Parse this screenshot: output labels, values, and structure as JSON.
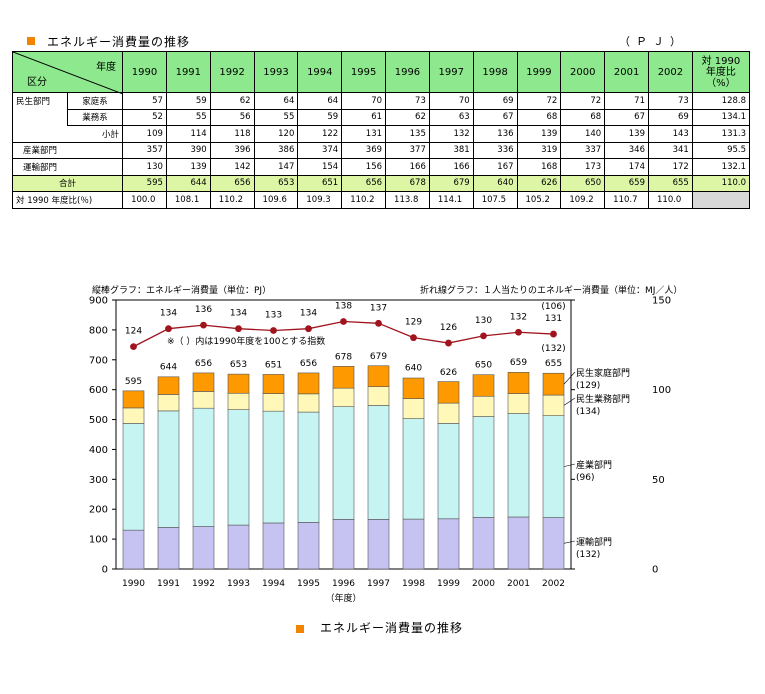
{
  "title": "エネルギー消費量の推移",
  "unit": "（ＰＪ）",
  "table": {
    "header_year": "年度",
    "header_category": "区分",
    "years": [
      "1990",
      "1991",
      "1992",
      "1993",
      "1994",
      "1995",
      "1996",
      "1997",
      "1998",
      "1999",
      "2000",
      "2001",
      "2002"
    ],
    "ratio_header": [
      "対 1990",
      "年度比",
      "（%）"
    ],
    "rows": [
      {
        "group": "民生部門",
        "sub": "家庭系",
        "values": [
          "57",
          "59",
          "62",
          "64",
          "64",
          "70",
          "73",
          "70",
          "69",
          "72",
          "72",
          "71",
          "73"
        ],
        "ratio": "128.8"
      },
      {
        "group": "",
        "sub": "業務系",
        "values": [
          "52",
          "55",
          "56",
          "55",
          "59",
          "61",
          "62",
          "63",
          "67",
          "68",
          "68",
          "67",
          "69"
        ],
        "ratio": "134.1"
      },
      {
        "group": "",
        "sub": "小計",
        "values": [
          "109",
          "114",
          "118",
          "120",
          "122",
          "131",
          "135",
          "132",
          "136",
          "139",
          "140",
          "139",
          "143"
        ],
        "ratio": "131.3"
      },
      {
        "group": "産業部門",
        "sub": "",
        "values": [
          "357",
          "390",
          "396",
          "386",
          "374",
          "369",
          "377",
          "381",
          "336",
          "319",
          "337",
          "346",
          "341"
        ],
        "ratio": "95.5"
      },
      {
        "group": "運輸部門",
        "sub": "",
        "values": [
          "130",
          "139",
          "142",
          "147",
          "154",
          "156",
          "166",
          "166",
          "167",
          "168",
          "173",
          "174",
          "172"
        ],
        "ratio": "132.1"
      }
    ],
    "total": {
      "label": "合計",
      "values": [
        "595",
        "644",
        "656",
        "653",
        "651",
        "656",
        "678",
        "679",
        "640",
        "626",
        "650",
        "659",
        "655"
      ],
      "ratio": "110.0"
    },
    "ratio_row": {
      "label": "対 1990 年度比(％)",
      "values": [
        "100.0",
        "108.1",
        "110.2",
        "109.6",
        "109.3",
        "110.2",
        "113.8",
        "114.1",
        "107.5",
        "105.2",
        "109.2",
        "110.7",
        "110.0"
      ],
      "ratio": ""
    }
  },
  "chart_data": {
    "type": "bar",
    "left_axis_title": "縦棒グラフ：エネルギー消費量（単位：PJ）",
    "right_axis_title": "折れ線グラフ：１人当たりのエネルギー消費量（単位：MJ／人）",
    "note": "※（ ）内は1990年度を100とする指数",
    "xlabel": "（年度）",
    "categories": [
      "1990",
      "1991",
      "1992",
      "1993",
      "1994",
      "1995",
      "1996",
      "1997",
      "1998",
      "1999",
      "2000",
      "2001",
      "2002"
    ],
    "ylim": [
      0,
      900
    ],
    "yticks": [
      0,
      100,
      200,
      300,
      400,
      500,
      600,
      700,
      800,
      900
    ],
    "y2lim": [
      0,
      150
    ],
    "y2ticks": [
      0,
      50,
      100,
      150
    ],
    "series": [
      {
        "name": "運輸部門",
        "index": "(132)",
        "color": "#c6c3f2",
        "values": [
          130,
          139,
          142,
          147,
          154,
          156,
          166,
          166,
          167,
          168,
          173,
          174,
          172
        ]
      },
      {
        "name": "産業部門",
        "index": "(96)",
        "color": "#c6f4f2",
        "values": [
          357,
          390,
          396,
          386,
          374,
          369,
          377,
          381,
          336,
          319,
          337,
          346,
          341
        ]
      },
      {
        "name": "民生業務部門",
        "index": "(134)",
        "color": "#fff8b8",
        "values": [
          52,
          55,
          56,
          55,
          59,
          61,
          62,
          63,
          67,
          68,
          68,
          67,
          69
        ]
      },
      {
        "name": "民生家庭部門",
        "index": "(129)",
        "color": "#ff9900",
        "values": [
          57,
          59,
          62,
          64,
          64,
          70,
          73,
          70,
          69,
          72,
          72,
          71,
          73
        ]
      }
    ],
    "totals": [
      595,
      644,
      656,
      653,
      651,
      656,
      678,
      679,
      640,
      626,
      650,
      659,
      655
    ],
    "line": {
      "axis": "right",
      "color": "#a0141e",
      "values": [
        124,
        134,
        136,
        134,
        133,
        134,
        138,
        137,
        129,
        126,
        130,
        132,
        131
      ],
      "end_index_top": "(106)",
      "end_index_bottom": "(132)"
    },
    "legend_caption": "エネルギー消費量の推移"
  }
}
